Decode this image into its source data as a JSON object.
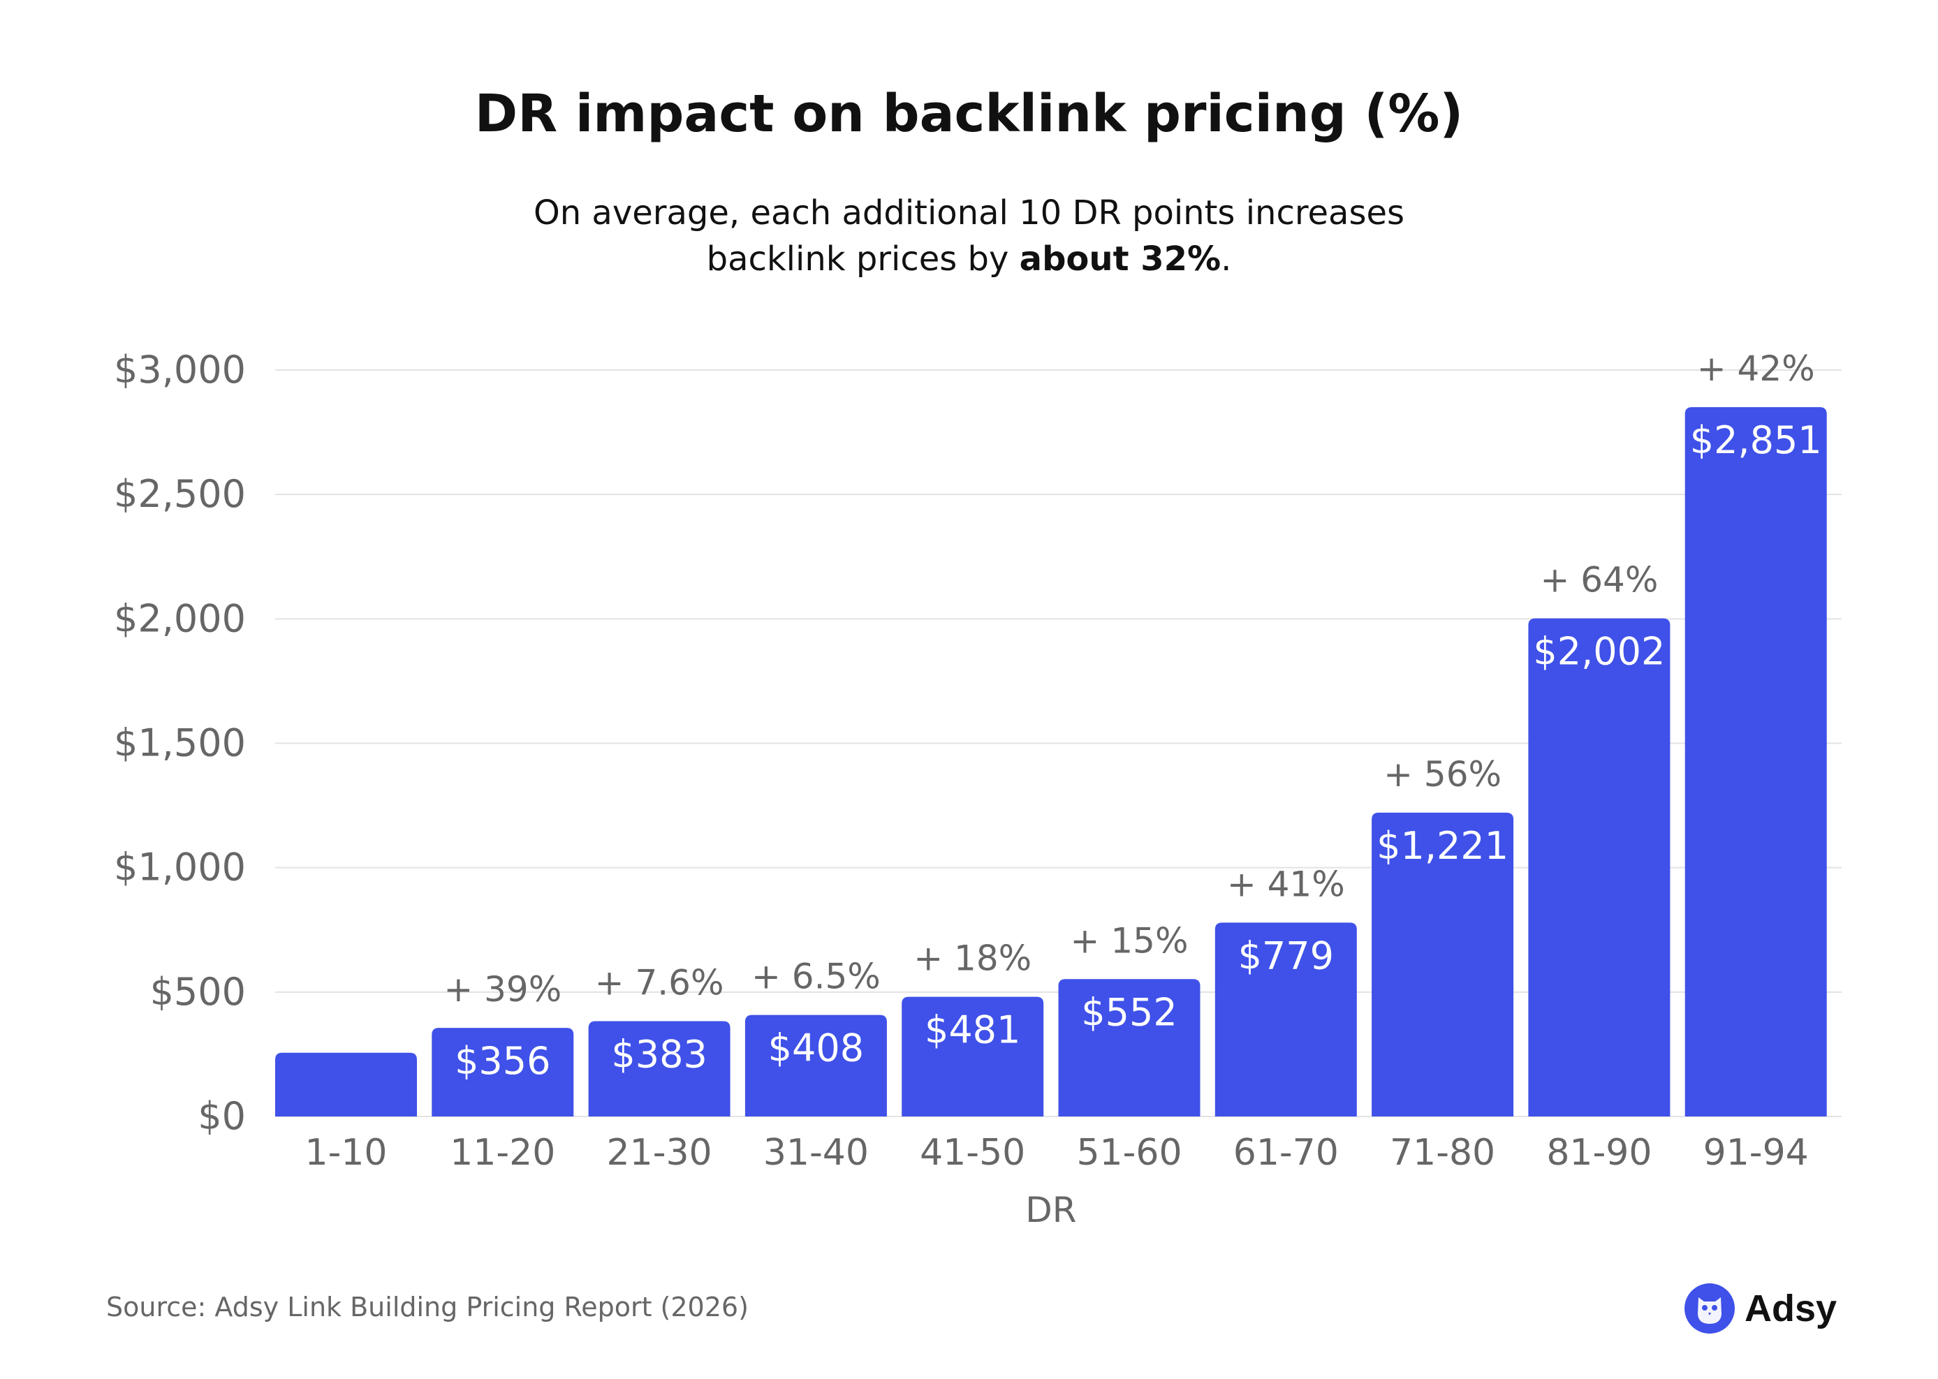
{
  "chart_data": {
    "type": "bar",
    "title": "DR impact on backlink pricing (%)",
    "subtitle_main": "On average, each additional 10 DR points increases backlink prices by ",
    "subtitle_bold": "about 32%",
    "subtitle_end": ".",
    "xlabel": "DR",
    "ylabel": "",
    "categories": [
      "1-10",
      "11-20",
      "21-30",
      "31-40",
      "41-50",
      "51-60",
      "61-70",
      "71-80",
      "81-90",
      "91-94"
    ],
    "values": [
      256,
      356,
      383,
      408,
      481,
      552,
      779,
      1221,
      2002,
      2851
    ],
    "value_labels": [
      "",
      "$356",
      "$383",
      "$408",
      "$481",
      "$552",
      "$779",
      "$1,221",
      "$2,002",
      "$2,851"
    ],
    "change_labels": [
      "",
      "+ 39%",
      "+ 7.6%",
      "+ 6.5%",
      "+ 18%",
      "+ 15%",
      "+ 41%",
      "+ 56%",
      "+ 64%",
      "+ 42%"
    ],
    "ylim": [
      0,
      3000
    ],
    "yticks": [
      0,
      500,
      1000,
      1500,
      2000,
      2500,
      3000
    ],
    "ytick_labels": [
      "$0",
      "$500",
      "$1,000",
      "$1,500",
      "$2,000",
      "$2,500",
      "$3,000"
    ],
    "grid": true,
    "bar_color": "#3f51e8"
  },
  "footer": {
    "source": "Source: Adsy Link Building Pricing Report (2026)",
    "logo_text": "Adsy"
  }
}
